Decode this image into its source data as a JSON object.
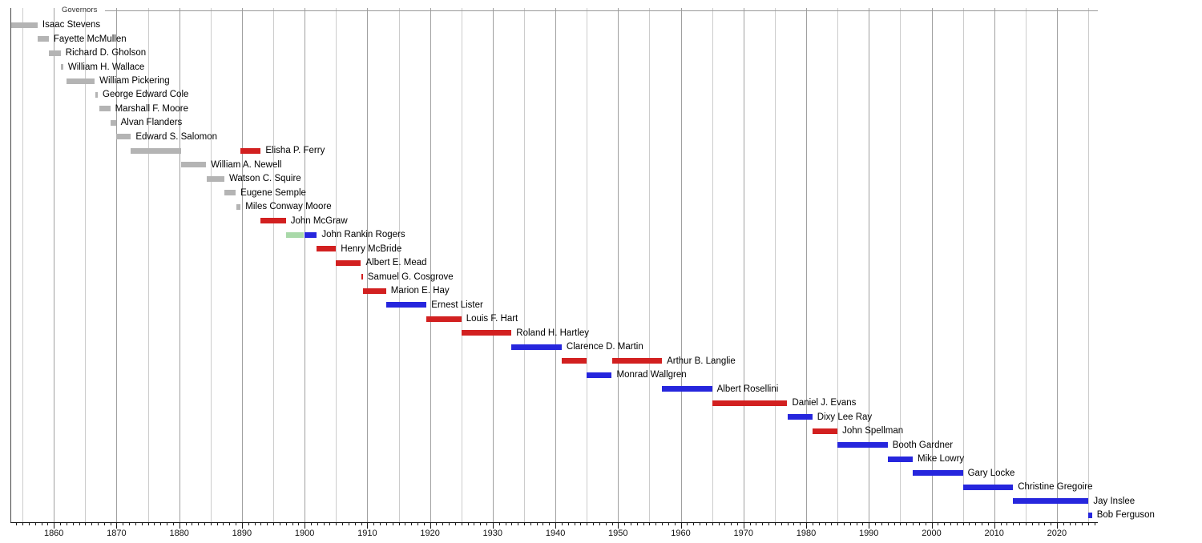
{
  "title": "Governors",
  "colors": {
    "gray": "#b4b4b4",
    "red": "#d22020",
    "blue": "#2626dd",
    "green": "#a9d9a9",
    "gridline_minor": "#cccccc",
    "gridline_decade": "#a0a0a0",
    "axis": "#1a1a1a",
    "frame": "#474747",
    "title_line": "#999999",
    "text": "#000000"
  },
  "chart_data": {
    "type": "timeline",
    "title": "Governors",
    "x_axis": {
      "min": 1853.2,
      "max": 2026.4,
      "gridline_interval": 5,
      "minor_tick_interval": 1,
      "decade_tick_labels": [
        "1860",
        "1870",
        "1880",
        "1890",
        "1900",
        "1910",
        "1920",
        "1930",
        "1940",
        "1950",
        "1960",
        "1970",
        "1980",
        "1990",
        "2000",
        "2010",
        "2020"
      ]
    },
    "governors": [
      {
        "name": "Isaac Stevens",
        "segments": [
          {
            "start": 1853.2,
            "end": 1857.4,
            "color": "gray"
          }
        ]
      },
      {
        "name": "Fayette McMullen",
        "segments": [
          {
            "start": 1857.4,
            "end": 1859.2,
            "color": "gray"
          }
        ]
      },
      {
        "name": "Richard D. Gholson",
        "segments": [
          {
            "start": 1859.2,
            "end": 1861.1,
            "color": "gray"
          }
        ]
      },
      {
        "name": "William H. Wallace",
        "segments": [
          {
            "start": 1861.1,
            "end": 1861.5,
            "color": "gray"
          }
        ]
      },
      {
        "name": "William Pickering",
        "segments": [
          {
            "start": 1862.0,
            "end": 1866.5,
            "color": "gray"
          }
        ]
      },
      {
        "name": "George Edward Cole",
        "segments": [
          {
            "start": 1866.6,
            "end": 1867.0,
            "color": "gray"
          }
        ]
      },
      {
        "name": "Marshall F. Moore",
        "segments": [
          {
            "start": 1867.2,
            "end": 1869.0,
            "color": "gray"
          }
        ]
      },
      {
        "name": "Alvan Flanders",
        "segments": [
          {
            "start": 1869.1,
            "end": 1869.9,
            "color": "gray"
          }
        ]
      },
      {
        "name": "Edward S. Salomon",
        "segments": [
          {
            "start": 1870.0,
            "end": 1872.3,
            "color": "gray"
          }
        ]
      },
      {
        "name": "Elisha P. Ferry",
        "segments": [
          {
            "start": 1872.3,
            "end": 1880.3,
            "color": "gray"
          },
          {
            "start": 1889.8,
            "end": 1893.0,
            "color": "red"
          }
        ]
      },
      {
        "name": "William A. Newell",
        "segments": [
          {
            "start": 1880.3,
            "end": 1884.3,
            "color": "gray"
          }
        ]
      },
      {
        "name": "Watson C. Squire",
        "segments": [
          {
            "start": 1884.4,
            "end": 1887.2,
            "color": "gray"
          }
        ]
      },
      {
        "name": "Eugene Semple",
        "segments": [
          {
            "start": 1887.2,
            "end": 1889.0,
            "color": "gray"
          }
        ]
      },
      {
        "name": "Miles Conway Moore",
        "segments": [
          {
            "start": 1889.1,
            "end": 1889.8,
            "color": "gray"
          }
        ]
      },
      {
        "name": "John McGraw",
        "segments": [
          {
            "start": 1893.0,
            "end": 1897.0,
            "color": "red"
          }
        ]
      },
      {
        "name": "John Rankin Rogers",
        "segments": [
          {
            "start": 1897.0,
            "end": 1899.9,
            "color": "green"
          },
          {
            "start": 1900.0,
            "end": 1901.95,
            "color": "blue"
          }
        ]
      },
      {
        "name": "Henry McBride",
        "segments": [
          {
            "start": 1901.95,
            "end": 1905.0,
            "color": "red"
          }
        ]
      },
      {
        "name": "Albert E. Mead",
        "segments": [
          {
            "start": 1905.0,
            "end": 1909.0,
            "color": "red"
          }
        ]
      },
      {
        "name": "Samuel G. Cosgrove",
        "segments": [
          {
            "start": 1909.0,
            "end": 1909.3,
            "color": "red"
          }
        ]
      },
      {
        "name": "Marion E. Hay",
        "segments": [
          {
            "start": 1909.3,
            "end": 1913.0,
            "color": "red"
          }
        ]
      },
      {
        "name": "Ernest Lister",
        "segments": [
          {
            "start": 1913.0,
            "end": 1919.45,
            "color": "blue"
          }
        ]
      },
      {
        "name": "Louis F. Hart",
        "segments": [
          {
            "start": 1919.45,
            "end": 1925.0,
            "color": "red"
          }
        ]
      },
      {
        "name": "Roland H. Hartley",
        "segments": [
          {
            "start": 1925.0,
            "end": 1933.0,
            "color": "red"
          }
        ]
      },
      {
        "name": "Clarence D. Martin",
        "segments": [
          {
            "start": 1933.0,
            "end": 1941.0,
            "color": "blue"
          }
        ]
      },
      {
        "name": "Arthur B. Langlie",
        "segments": [
          {
            "start": 1941.0,
            "end": 1945.0,
            "color": "red"
          },
          {
            "start": 1949.0,
            "end": 1957.0,
            "color": "red"
          }
        ]
      },
      {
        "name": "Monrad Wallgren",
        "segments": [
          {
            "start": 1945.0,
            "end": 1949.0,
            "color": "blue"
          }
        ]
      },
      {
        "name": "Albert Rosellini",
        "segments": [
          {
            "start": 1957.0,
            "end": 1965.0,
            "color": "blue"
          }
        ]
      },
      {
        "name": "Daniel J. Evans",
        "segments": [
          {
            "start": 1965.0,
            "end": 1977.0,
            "color": "red"
          }
        ]
      },
      {
        "name": "Dixy Lee Ray",
        "segments": [
          {
            "start": 1977.0,
            "end": 1981.0,
            "color": "blue"
          }
        ]
      },
      {
        "name": "John Spellman",
        "segments": [
          {
            "start": 1981.0,
            "end": 1985.0,
            "color": "red"
          }
        ]
      },
      {
        "name": "Booth Gardner",
        "segments": [
          {
            "start": 1985.0,
            "end": 1993.0,
            "color": "blue"
          }
        ]
      },
      {
        "name": "Mike Lowry",
        "segments": [
          {
            "start": 1993.0,
            "end": 1997.0,
            "color": "blue"
          }
        ]
      },
      {
        "name": "Gary Locke",
        "segments": [
          {
            "start": 1997.0,
            "end": 2005.0,
            "color": "blue"
          }
        ]
      },
      {
        "name": "Christine Gregoire",
        "segments": [
          {
            "start": 2005.0,
            "end": 2013.0,
            "color": "blue"
          }
        ]
      },
      {
        "name": "Jay Inslee",
        "segments": [
          {
            "start": 2013.0,
            "end": 2025.05,
            "color": "blue"
          }
        ]
      },
      {
        "name": "Bob Ferguson",
        "segments": [
          {
            "start": 2025.05,
            "end": 2025.6,
            "color": "blue"
          }
        ]
      }
    ]
  }
}
